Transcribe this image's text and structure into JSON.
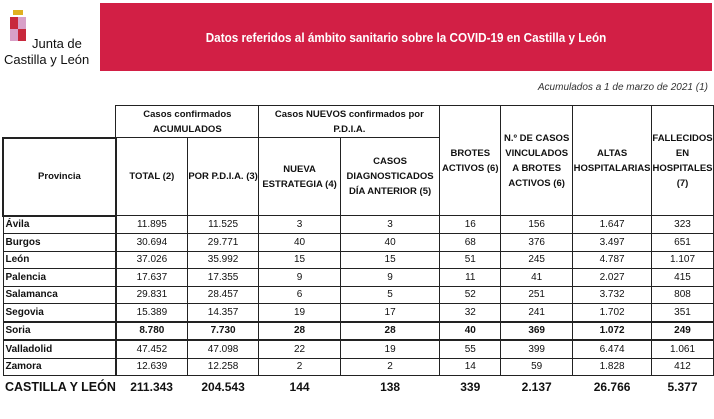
{
  "logo": {
    "line1": "Junta de",
    "line2": "Castilla y León"
  },
  "title": "Datos referidos al ámbito sanitario sobre la COVID-19 en Castilla y León",
  "note": "Acumulados a 1 de marzo de 2021 (1)",
  "headers": {
    "group1": "Casos confirmados ACUMULADOS",
    "group2": "Casos NUEVOS confirmados por P.D.I.A.",
    "provincia": "Provincia",
    "total": "TOTAL (2)",
    "pdia": "POR P.D.I.A. (3)",
    "nueva": "NUEVA ESTRATEGIA (4)",
    "diag": "CASOS DIAGNOSTICADOS DÍA ANTERIOR (5)",
    "brotes": "BROTES ACTIVOS (6)",
    "vinculados": "N.º DE CASOS VINCULADOS A BROTES ACTIVOS (6)",
    "altas": "ALTAS HOSPITALARIAS",
    "fallecidos": "FALLECIDOS EN HOSPITALES (7)"
  },
  "rows": [
    [
      "Ávila",
      "11.895",
      "11.525",
      "3",
      "3",
      "16",
      "156",
      "1.647",
      "323"
    ],
    [
      "Burgos",
      "30.694",
      "29.771",
      "40",
      "40",
      "68",
      "376",
      "3.497",
      "651"
    ],
    [
      "León",
      "37.026",
      "35.992",
      "15",
      "15",
      "51",
      "245",
      "4.787",
      "1.107"
    ],
    [
      "Palencia",
      "17.637",
      "17.355",
      "9",
      "9",
      "11",
      "41",
      "2.027",
      "415"
    ],
    [
      "Salamanca",
      "29.831",
      "28.457",
      "6",
      "5",
      "52",
      "251",
      "3.732",
      "808"
    ],
    [
      "Segovia",
      "15.389",
      "14.357",
      "19",
      "17",
      "32",
      "241",
      "1.702",
      "351"
    ],
    [
      "Soria",
      "8.780",
      "7.730",
      "28",
      "28",
      "40",
      "369",
      "1.072",
      "249"
    ],
    [
      "Valladolid",
      "47.452",
      "47.098",
      "22",
      "19",
      "55",
      "399",
      "6.474",
      "1.061"
    ],
    [
      "Zamora",
      "12.639",
      "12.258",
      "2",
      "2",
      "14",
      "59",
      "1.828",
      "412"
    ]
  ],
  "total": [
    "CASTILLA Y LEÓN",
    "211.343",
    "204.543",
    "144",
    "138",
    "339",
    "2.137",
    "26.766",
    "5.377"
  ],
  "colors": {
    "banner": "#d21f45"
  }
}
